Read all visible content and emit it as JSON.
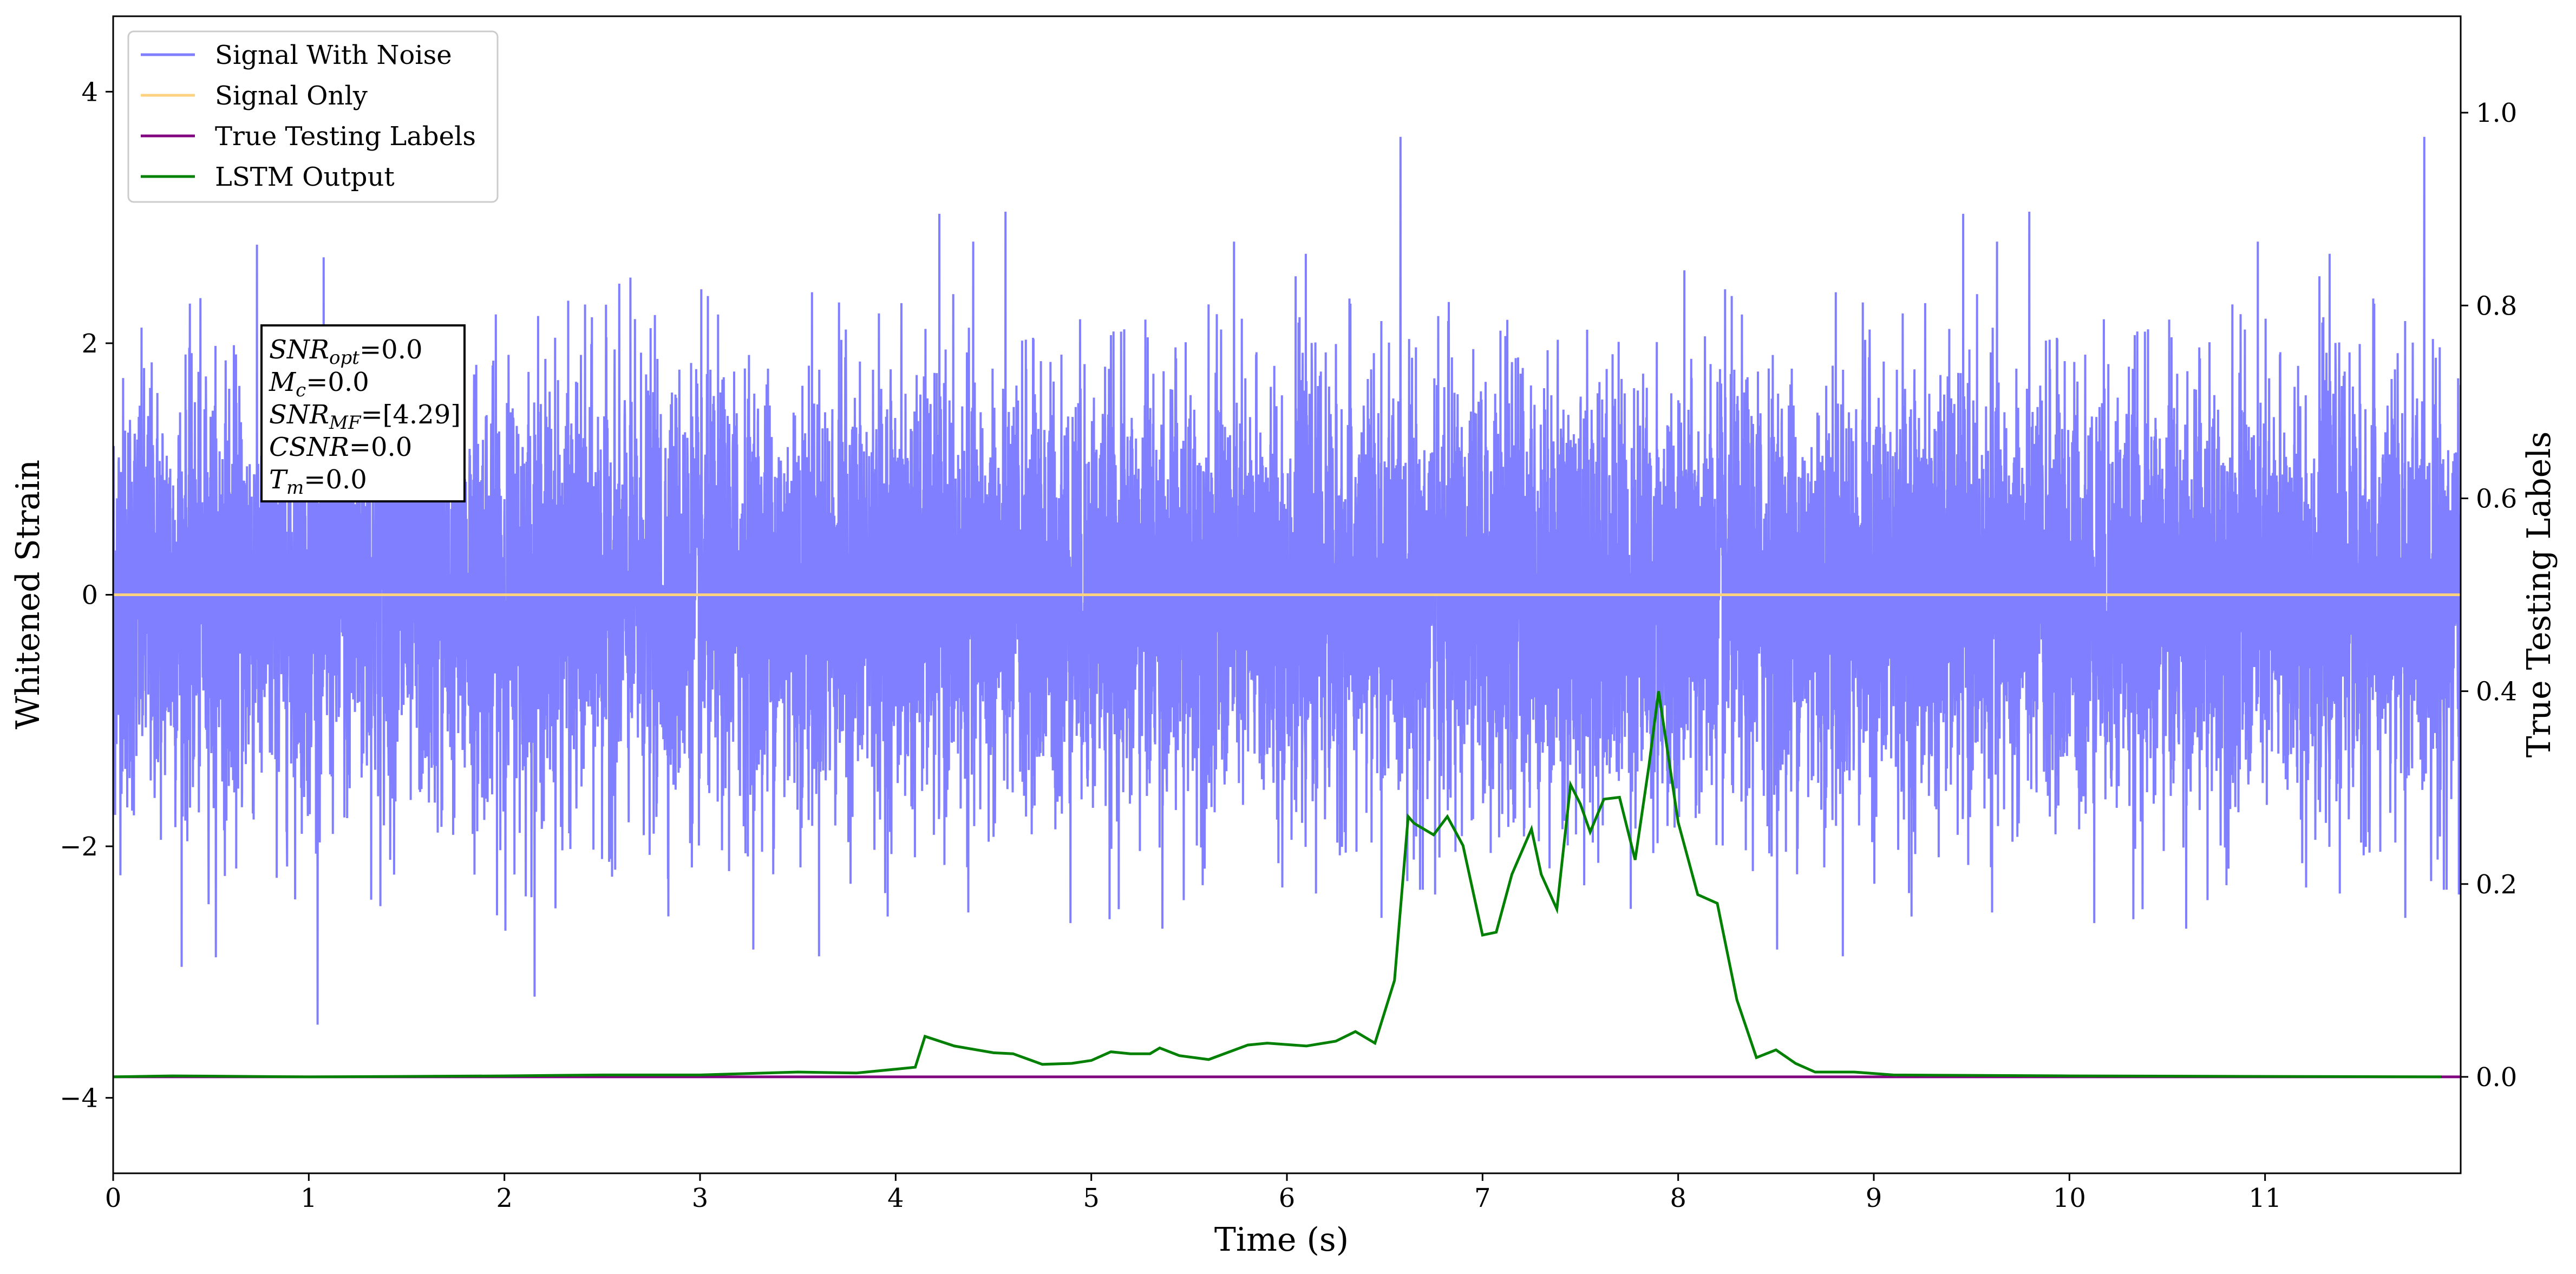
{
  "chart_data": {
    "type": "line",
    "xlabel": "Time (s)",
    "ylabel": "Whitened Strain",
    "ylabel_right": "True Testing Labels",
    "xlim": [
      0,
      12
    ],
    "ylim": [
      -4.6,
      4.6
    ],
    "ylim_right": [
      -0.1,
      1.1
    ],
    "x_ticks": [
      0,
      1,
      2,
      3,
      4,
      5,
      6,
      7,
      8,
      9,
      10,
      11
    ],
    "x_tick_labels": [
      "0",
      "1",
      "2",
      "3",
      "4",
      "5",
      "6",
      "7",
      "8",
      "9",
      "10",
      "11"
    ],
    "y_ticks": [
      -4,
      -2,
      0,
      2,
      4
    ],
    "y_tick_labels": [
      "−4",
      "−2",
      "0",
      "2",
      "4"
    ],
    "y_right_ticks": [
      0.0,
      0.2,
      0.4,
      0.6,
      0.8,
      1.0
    ],
    "y_right_tick_labels": [
      "0.0",
      "0.2",
      "0.4",
      "0.6",
      "0.8",
      "1.0"
    ],
    "legend_position": "upper-left",
    "legend": [
      "Signal With Noise",
      "Signal Only",
      "True Testing Labels",
      "LSTM Output"
    ],
    "series": [
      {
        "name": "Signal With Noise",
        "axis": "left",
        "color": "#7f7fff",
        "noise_std": 0.85,
        "noise_peak": 4.2,
        "x_range": [
          0,
          12
        ]
      },
      {
        "name": "Signal Only",
        "axis": "left",
        "color": "#ffd27f",
        "x": [
          0,
          12
        ],
        "y": [
          0,
          0
        ]
      },
      {
        "name": "True Testing Labels",
        "axis": "right",
        "color": "#800080",
        "x": [
          0,
          12
        ],
        "y": [
          0,
          0
        ]
      },
      {
        "name": "LSTM Output",
        "axis": "right",
        "color": "#008000",
        "x": [
          0,
          0.3,
          1,
          2,
          2.5,
          3,
          3.5,
          3.8,
          4.0,
          4.1,
          4.15,
          4.3,
          4.5,
          4.6,
          4.75,
          4.9,
          5.0,
          5.1,
          5.2,
          5.3,
          5.35,
          5.45,
          5.6,
          5.8,
          5.9,
          6.1,
          6.25,
          6.35,
          6.45,
          6.55,
          6.62,
          6.65,
          6.75,
          6.82,
          6.9,
          7.0,
          7.07,
          7.15,
          7.25,
          7.3,
          7.38,
          7.45,
          7.5,
          7.55,
          7.62,
          7.7,
          7.78,
          7.85,
          7.9,
          8.0,
          8.1,
          8.2,
          8.3,
          8.4,
          8.5,
          8.6,
          8.7,
          8.9,
          9.1,
          10,
          11.9
        ],
        "y": [
          0.0,
          0.001,
          0.0,
          0.001,
          0.002,
          0.002,
          0.005,
          0.004,
          0.008,
          0.01,
          0.042,
          0.032,
          0.025,
          0.024,
          0.013,
          0.014,
          0.017,
          0.026,
          0.024,
          0.024,
          0.03,
          0.022,
          0.018,
          0.033,
          0.035,
          0.032,
          0.037,
          0.047,
          0.035,
          0.1,
          0.27,
          0.263,
          0.251,
          0.27,
          0.24,
          0.147,
          0.15,
          0.21,
          0.257,
          0.21,
          0.174,
          0.303,
          0.283,
          0.254,
          0.288,
          0.29,
          0.225,
          0.322,
          0.4,
          0.264,
          0.189,
          0.18,
          0.08,
          0.02,
          0.028,
          0.014,
          0.005,
          0.005,
          0.002,
          0.001,
          0.0
        ]
      }
    ],
    "annotation": {
      "lines": [
        {
          "sym": "SNR",
          "sub": "opt",
          "val": "=0.0"
        },
        {
          "sym": "M",
          "sub": "c",
          "val": "=0.0"
        },
        {
          "sym": "SNR",
          "sub": "MF",
          "val": "=[4.29]"
        },
        {
          "sym": "CSNR",
          "sub": "",
          "val": "=0.0"
        },
        {
          "sym": "T",
          "sub": "m",
          "val": "=0.0"
        }
      ]
    }
  }
}
